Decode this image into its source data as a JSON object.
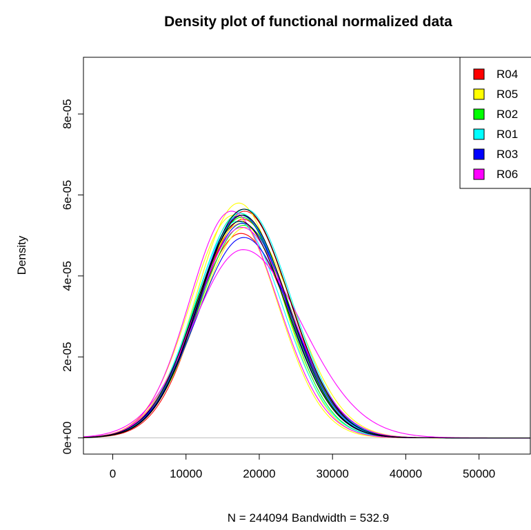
{
  "chart_data": {
    "type": "line",
    "title": "Density plot of functional normalized data",
    "xlabel": "N = 244094   Bandwidth = 532.9",
    "ylabel": "Density",
    "xlim": [
      -4000,
      57000
    ],
    "ylim": [
      -4e-06,
      9.4e-05
    ],
    "x_ticks": [
      0,
      10000,
      20000,
      30000,
      40000,
      50000
    ],
    "x_tick_labels": [
      "0",
      "10000",
      "20000",
      "30000",
      "40000",
      "50000"
    ],
    "y_ticks": [
      0,
      2e-05,
      4e-05,
      6e-05,
      8e-05
    ],
    "y_tick_labels": [
      "0e+00",
      "2e-05",
      "4e-05",
      "6e-05",
      "8e-05"
    ],
    "grid": false,
    "baseline": {
      "y": 0,
      "color": "#bebebe"
    },
    "legend": {
      "position": "top-right",
      "entries": [
        {
          "label": "R04",
          "color": "#ff0000"
        },
        {
          "label": "R05",
          "color": "#ffff00"
        },
        {
          "label": "R02",
          "color": "#00ff00"
        },
        {
          "label": "R01",
          "color": "#00ffff"
        },
        {
          "label": "R03",
          "color": "#0000ff"
        },
        {
          "label": "R06",
          "color": "#ff00ff"
        }
      ]
    },
    "series": [
      {
        "color": "#ff0000",
        "peak_x": 17500,
        "peak_y": 5.05e-05,
        "sigma_left": 6300,
        "sigma_right": 6700
      },
      {
        "color": "#ff0000",
        "peak_x": 17800,
        "peak_y": 5.4e-05,
        "sigma_left": 6100,
        "sigma_right": 6300
      },
      {
        "color": "#ff0000",
        "peak_x": 18000,
        "peak_y": 5.6e-05,
        "sigma_left": 6000,
        "sigma_right": 6200
      },
      {
        "color": "#ffff00",
        "peak_x": 17200,
        "peak_y": 5.8e-05,
        "sigma_left": 5800,
        "sigma_right": 5900
      },
      {
        "color": "#ffff00",
        "peak_x": 17500,
        "peak_y": 5.3e-05,
        "sigma_left": 6300,
        "sigma_right": 6300
      },
      {
        "color": "#ffff00",
        "peak_x": 16500,
        "peak_y": 5.5e-05,
        "sigma_left": 5900,
        "sigma_right": 6000
      },
      {
        "color": "#ffff00",
        "peak_x": 18200,
        "peak_y": 5.2e-05,
        "sigma_left": 6400,
        "sigma_right": 6600
      },
      {
        "color": "#00ff00",
        "peak_x": 17600,
        "peak_y": 5.45e-05,
        "sigma_left": 6000,
        "sigma_right": 6200
      },
      {
        "color": "#00ff00",
        "peak_x": 17900,
        "peak_y": 5.25e-05,
        "sigma_left": 6200,
        "sigma_right": 6400
      },
      {
        "color": "#00ff00",
        "peak_x": 17300,
        "peak_y": 5.55e-05,
        "sigma_left": 5900,
        "sigma_right": 6100
      },
      {
        "color": "#00ffff",
        "peak_x": 17400,
        "peak_y": 5.55e-05,
        "sigma_left": 6100,
        "sigma_right": 6400
      },
      {
        "color": "#00ffff",
        "peak_x": 17000,
        "peak_y": 5.35e-05,
        "sigma_left": 5900,
        "sigma_right": 6200
      },
      {
        "color": "#00ffff",
        "peak_x": 18100,
        "peak_y": 5.65e-05,
        "sigma_left": 6200,
        "sigma_right": 6300
      },
      {
        "color": "#0000ff",
        "peak_x": 17900,
        "peak_y": 4.95e-05,
        "sigma_left": 6400,
        "sigma_right": 6600
      },
      {
        "color": "#0000ff",
        "peak_x": 17500,
        "peak_y": 5.5e-05,
        "sigma_left": 6000,
        "sigma_right": 6200
      },
      {
        "color": "#0000ff",
        "peak_x": 17700,
        "peak_y": 5.3e-05,
        "sigma_left": 6100,
        "sigma_right": 6400
      },
      {
        "color": "#ff00ff",
        "peak_x": 17800,
        "peak_y": 4.65e-05,
        "sigma_left": 6800,
        "sigma_right": 8000
      },
      {
        "color": "#ff00ff",
        "peak_x": 16200,
        "peak_y": 5.6e-05,
        "sigma_left": 5700,
        "sigma_right": 6300
      },
      {
        "color": "#ff00ff",
        "peak_x": 17600,
        "peak_y": 5.2e-05,
        "sigma_left": 6300,
        "sigma_right": 6700
      },
      {
        "color": "#000000",
        "peak_x": 17900,
        "peak_y": 5.65e-05,
        "sigma_left": 6100,
        "sigma_right": 6300
      },
      {
        "color": "#000000",
        "peak_x": 17700,
        "peak_y": 5.5e-05,
        "sigma_left": 6000,
        "sigma_right": 6200
      },
      {
        "color": "#000000",
        "peak_x": 17400,
        "peak_y": 5.35e-05,
        "sigma_left": 6100,
        "sigma_right": 6300
      }
    ]
  }
}
